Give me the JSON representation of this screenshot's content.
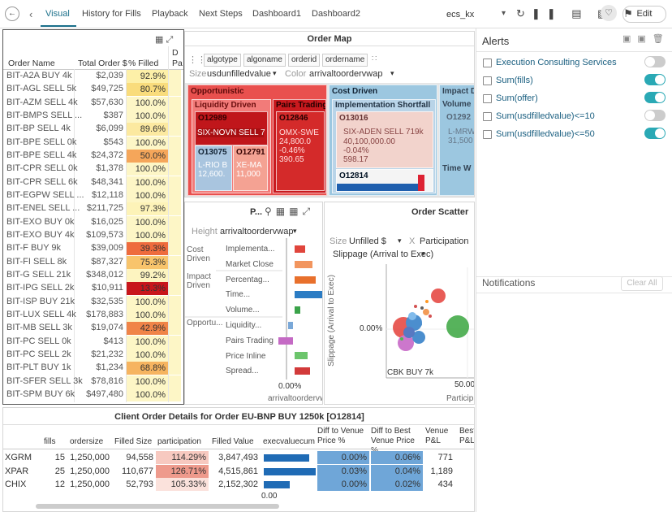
{
  "nav": {
    "tabs": [
      "Visual",
      "History for Fills",
      "Playback",
      "Next Steps",
      "Dashboard1",
      "Dashboard2"
    ],
    "workspace": "ecs_kx",
    "edit": "Edit"
  },
  "order_table": {
    "headers": [
      "Order Name",
      "Total Order $",
      "% Filled",
      "D",
      "Pa"
    ],
    "rows": [
      [
        "BIT-A2A BUY 4k",
        "$2,039",
        "92.9%"
      ],
      [
        "BIT-AGL SELL 5k",
        "$49,725",
        "80.7%"
      ],
      [
        "BIT-AZM SELL 4k",
        "$57,630",
        "100.0%"
      ],
      [
        "BIT-BMPS SELL ...",
        "$387",
        "100.0%"
      ],
      [
        "BIT-BP SELL 4k",
        "$6,099",
        "89.6%"
      ],
      [
        "BIT-BPE SELL 0k",
        "$543",
        "100.0%"
      ],
      [
        "BIT-BPE SELL 4k",
        "$24,372",
        "50.0%"
      ],
      [
        "BIT-CPR SELL 0k",
        "$1,378",
        "100.0%"
      ],
      [
        "BIT-CPR SELL 6k",
        "$48,341",
        "100.0%"
      ],
      [
        "BIT-EGPW SELL ...",
        "$12,118",
        "100.0%"
      ],
      [
        "BIT-ENEL SELL ...",
        "$211,725",
        "97.3%"
      ],
      [
        "BIT-EXO BUY 0k",
        "$16,025",
        "100.0%"
      ],
      [
        "BIT-EXO BUY 4k",
        "$109,573",
        "100.0%"
      ],
      [
        "BIT-F BUY 9k",
        "$39,009",
        "39.3%"
      ],
      [
        "BIT-FI SELL 8k",
        "$87,327",
        "75.3%"
      ],
      [
        "BIT-G SELL 21k",
        "$348,012",
        "99.2%"
      ],
      [
        "BIT-IPG SELL 2k",
        "$10,911",
        "13.3%"
      ],
      [
        "BIT-ISP BUY 21k",
        "$32,535",
        "100.0%"
      ],
      [
        "BIT-LUX SELL 4k",
        "$178,883",
        "100.0%"
      ],
      [
        "BIT-MB SELL 3k",
        "$19,074",
        "42.9%"
      ],
      [
        "BIT-PC SELL 0k",
        "$413",
        "100.0%"
      ],
      [
        "BIT-PC SELL 2k",
        "$21,232",
        "100.0%"
      ],
      [
        "BIT-PLT BUY 1k",
        "$1,234",
        "68.8%"
      ],
      [
        "BIT-SFER SELL 3k",
        "$78,816",
        "100.0%"
      ],
      [
        "BIT-SPM BUY 6k",
        "$497,480",
        "100.0%"
      ]
    ],
    "fill_colors": [
      "#fdf0a8",
      "#f9dc7c",
      "#fdf6c6",
      "#fdf6c6",
      "#fce9a0",
      "#fdf6c6",
      "#f5a65a",
      "#fdf6c6",
      "#fdf6c6",
      "#fdf6c6",
      "#fdf3b8",
      "#fdf6c6",
      "#fdf6c6",
      "#ee6b3d",
      "#f8c46c",
      "#fdf4c0",
      "#c8161b",
      "#fdf6c6",
      "#fdf6c6",
      "#f08448",
      "#fdf6c6",
      "#fdf6c6",
      "#f6b460",
      "#fdf6c6",
      "#fdf6c6"
    ]
  },
  "order_map": {
    "title": "Order Map",
    "tags": [
      "algotype",
      "algoname",
      "orderid",
      "ordername"
    ],
    "size_label": "Size",
    "size_field": "usdunfilledvalue",
    "color_label": "Color",
    "color_field": "arrivaltoordervwap",
    "tiles": {
      "opportunistic": "Opportunistic",
      "liquidity": "Liquidity Driven",
      "pairs": "Pairs Trading",
      "o12989": "O12989",
      "o12989_name": "SIX-NOVN SELL 7",
      "o12846": "O12846",
      "o12846_name": "OMX-SWE",
      "o12846_size": "24,800.0",
      "o12846_pct": "-0.46%",
      "o12846_val": "390.65",
      "o13075": "O13075",
      "o13075_name": "L-RIO B",
      "o13075_size": "12,600.",
      "o12791": "O12791",
      "o12791_name": "XE-MA",
      "o12791_size": "11,000",
      "cost": "Cost Driven",
      "impl": "Implementation Shortfall",
      "o13016": "O13016",
      "o13016_name": "SIX-ADEN SELL 719k",
      "o13016_size": "40,100,000.00",
      "o13016_pct": "-0.04%",
      "o13016_val": "598.17",
      "o12814": "O12814",
      "impact": "Impact D",
      "volume": "Volume",
      "o1292": "O1292",
      "lmrw": "L-MRW",
      "lmrw_size": "31,500",
      "timew": "Time W"
    }
  },
  "strategy_panel": {
    "title": "P...",
    "height_label": "Height",
    "height_field": "arrivaltoordervwap",
    "groups": [
      "Cost Driven",
      "Impact Driven",
      "Opportu..."
    ],
    "items": [
      "Implementa...",
      "Market Close",
      "Percentag...",
      "Time...",
      "Volume...",
      "Liquidity...",
      "Pairs Trading",
      "Price Inline",
      "Spread..."
    ],
    "axis_tick": "0.00%",
    "axis_label": "arrivaltoordervw"
  },
  "scatter": {
    "title": "Order Scatter",
    "size_label": "Size",
    "size_field": "Unfilled $",
    "x_label": "X",
    "x_field": "Participation",
    "y_field": "Slippage (Arrival to Exec)",
    "y_axis_title": "Slippage (Arrival to Exec)",
    "y_tick": "0.00%",
    "x_tick": "50.00",
    "x_axis_title": "Particip",
    "point_label": "CBK BUY 7k"
  },
  "alerts": {
    "title": "Alerts",
    "items": [
      {
        "label": "Execution Consulting Services",
        "on": false
      },
      {
        "label": "Sum(fills)",
        "on": true
      },
      {
        "label": "Sum(offer)",
        "on": true
      },
      {
        "label": "Sum(usdfilledvalue)<=10",
        "on": false
      },
      {
        "label": "Sum(usdfilledvalue)<=50",
        "on": true
      }
    ],
    "notifications": "Notifications",
    "clear": "Clear All"
  },
  "details": {
    "title": "Client Order Details for Order EU-BNP BUY 1250k [O12814]",
    "headers": [
      "fills",
      "ordersize",
      "Filled Size",
      "participation",
      "Filled Value",
      "execvaluecum",
      "Diff to Venue Price %",
      "Diff to Best Venue Price %",
      "Venue P&L",
      "Best P&L"
    ],
    "rows": [
      [
        "XGRM",
        "15",
        "1,250,000",
        "94,558",
        "114.29%",
        "3,847,493",
        "0.00%",
        "0.06%",
        "771"
      ],
      [
        "XPAR",
        "25",
        "1,250,000",
        "110,677",
        "126.71%",
        "4,515,861",
        "0.03%",
        "0.04%",
        "1,189"
      ],
      [
        "CHIX",
        "12",
        "1,250,000",
        "52,793",
        "105.33%",
        "2,152,302",
        "0.00%",
        "0.02%",
        "434"
      ]
    ],
    "participation_colors": [
      "#f7c9c0",
      "#ee9a8c",
      "#fbe2dc"
    ],
    "axis_tick": "0.00"
  }
}
